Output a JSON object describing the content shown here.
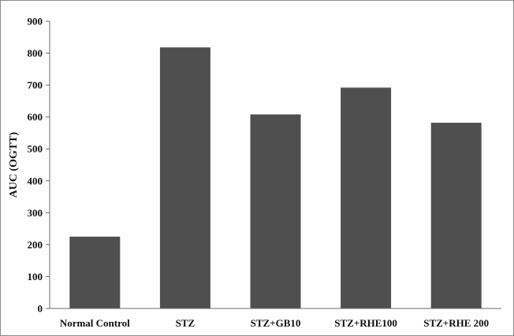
{
  "chart_data": {
    "type": "bar",
    "categories": [
      "Normal Control",
      "STZ",
      "STZ+GB10",
      "STZ+RHE100",
      "STZ+RHE 200"
    ],
    "values": [
      225,
      818,
      608,
      692,
      582
    ],
    "title": "",
    "xlabel": "",
    "ylabel": "AUC (OGTT)",
    "ylim": [
      0,
      900
    ],
    "yticks": [
      0,
      100,
      200,
      300,
      400,
      500,
      600,
      700,
      800,
      900
    ],
    "grid": false,
    "legend": "none",
    "bar_color": "#4f4f4f"
  }
}
